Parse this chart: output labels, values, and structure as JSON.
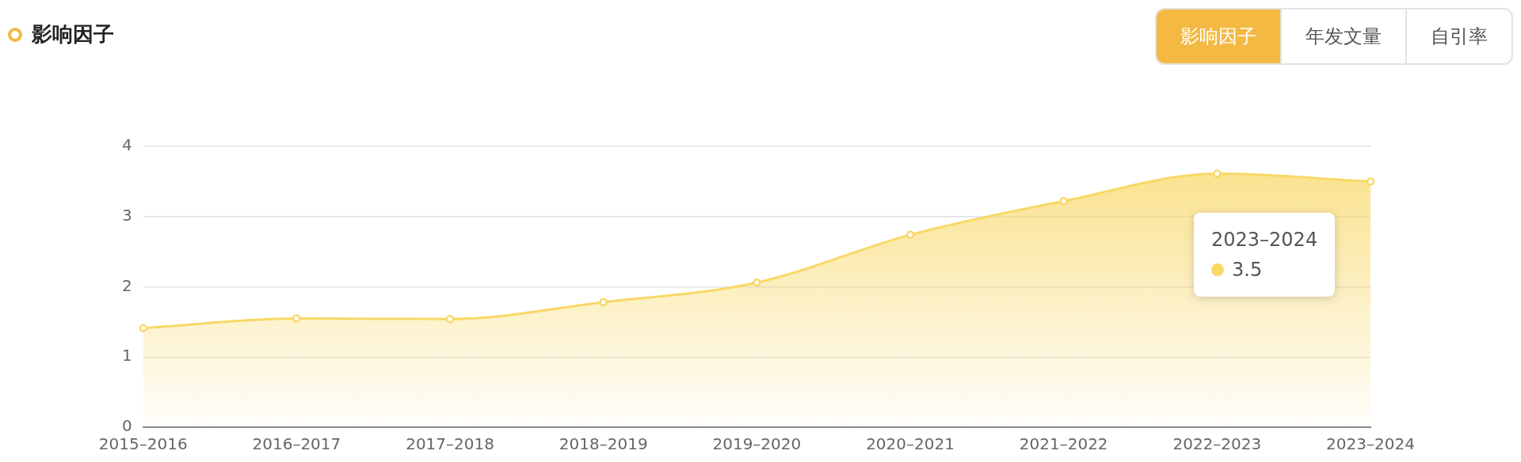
{
  "chart_data": {
    "type": "area",
    "title": "影响因子",
    "categories": [
      "2015–2016",
      "2016–2017",
      "2017–2018",
      "2018–2019",
      "2019–2020",
      "2020–2021",
      "2021–2022",
      "2022–2023",
      "2023–2024"
    ],
    "series": [
      {
        "color": "#f8d866",
        "values": [
          1.41,
          1.55,
          1.54,
          1.78,
          2.06,
          2.74,
          3.22,
          3.61,
          3.5
        ]
      }
    ],
    "ylim": [
      0,
      4
    ],
    "yticks": [
      0,
      1,
      2,
      3,
      4
    ],
    "grid": "y",
    "marker": "circle",
    "legend": false,
    "annotations": [
      "2023–2024",
      "3.5",
      "影响因子",
      "年发文量",
      "自引率"
    ]
  }
}
